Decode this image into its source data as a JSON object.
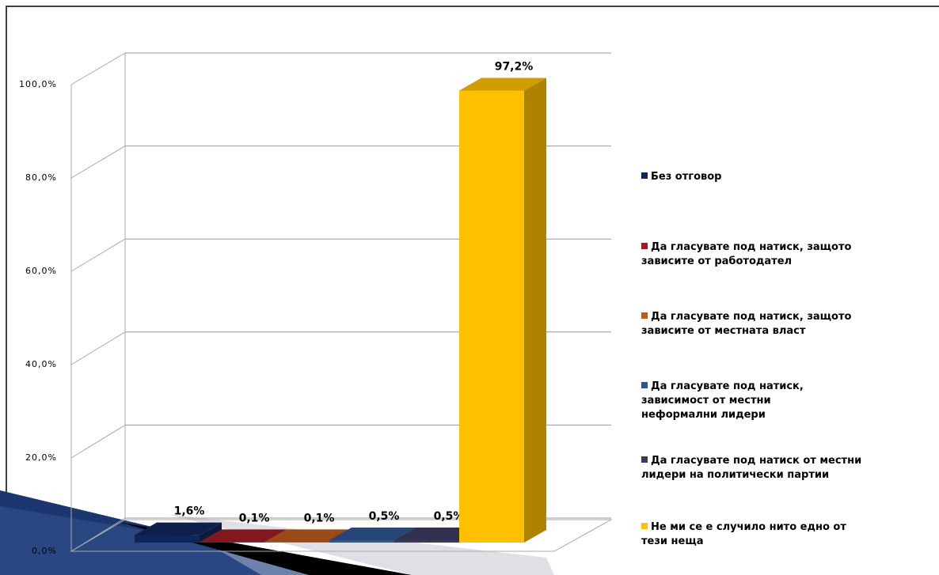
{
  "chart_data": {
    "type": "bar3d",
    "categories": [
      "Без отговор",
      "Да гласувате под натиск, защото\nзависите от работодател",
      "Да гласувате под натиск, защото\nзависите от местната власт",
      "Да гласувате под натиск,\nзависимост от местни\nнеформални лидери",
      "Да гласувате под натиск от местни\nлидери на политически партии",
      "Не ми се е случило нито едно от\nтези неща"
    ],
    "values": [
      1.6,
      0.1,
      0.1,
      0.5,
      0.5,
      97.2
    ],
    "value_labels": [
      "1,6%",
      "0,1%",
      "0,1%",
      "0,5%",
      "0,5%",
      "97,2%"
    ],
    "colors": [
      "#10265a",
      "#a01c24",
      "#bd5a1a",
      "#2d5590",
      "#3a3a60",
      "#ffc000"
    ],
    "ylim": [
      0,
      100
    ],
    "yticks": [
      {
        "value": 0,
        "label": "0,0%"
      },
      {
        "value": 20,
        "label": "20,0%"
      },
      {
        "value": 40,
        "label": "40,0%"
      },
      {
        "value": 60,
        "label": "60,0%"
      },
      {
        "value": 80,
        "label": "80,0%"
      },
      {
        "value": 100,
        "label": "100,0%"
      }
    ],
    "grid": true,
    "legend": "right"
  }
}
